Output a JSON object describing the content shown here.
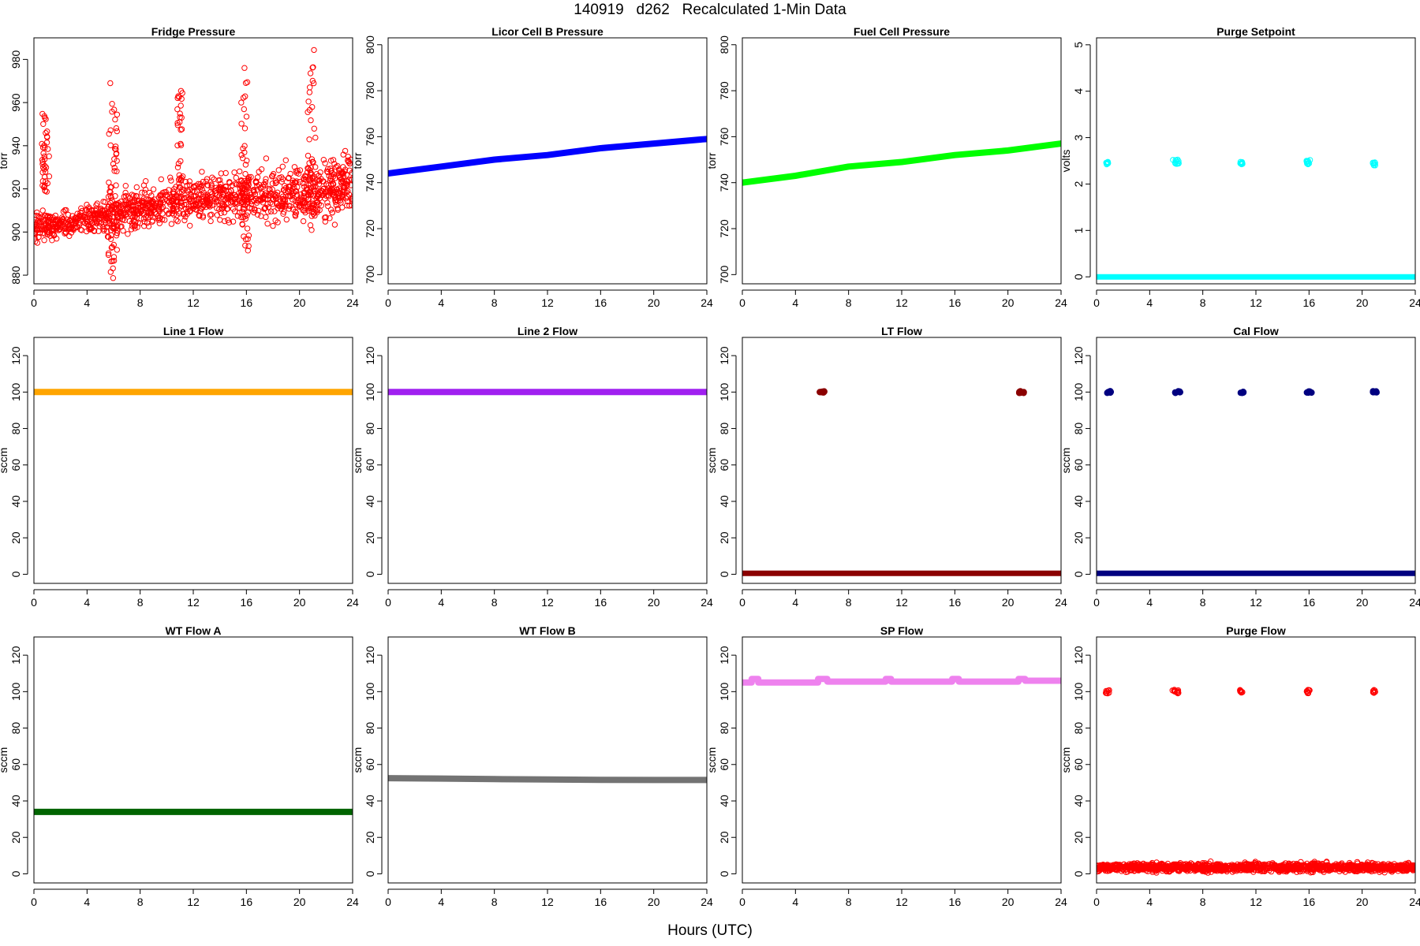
{
  "figure": {
    "title": "140919   d262   Recalculated 1-Min Data",
    "xlabel": "Hours (UTC)"
  },
  "chart_data": [
    {
      "id": "fridge-pressure",
      "type": "scatter",
      "title": "Fridge Pressure",
      "ylabel": "torr",
      "xlim": [
        0,
        24
      ],
      "ylim": [
        876,
        990
      ],
      "xticks": [
        0,
        4,
        8,
        12,
        16,
        20,
        24
      ],
      "yticks": [
        880,
        900,
        920,
        940,
        960,
        980
      ],
      "color": "#ff0000",
      "marker": "open",
      "series": [
        {
          "name": "baseline",
          "kind": "noisy",
          "x": [
            0,
            4,
            8,
            12,
            16,
            20,
            24
          ],
          "y": [
            902,
            905,
            911,
            915,
            917,
            919,
            922
          ],
          "noise": [
            6,
            6,
            9,
            10,
            11,
            13,
            14
          ],
          "n": 1300
        },
        {
          "name": "spike-1",
          "kind": "cluster",
          "x": [
            0.6,
            1.2
          ],
          "y": [
            918,
            956
          ],
          "n": 40
        },
        {
          "name": "spike-2",
          "kind": "cluster",
          "x": [
            5.6,
            6.3
          ],
          "y": [
            878,
            970
          ],
          "n": 55
        },
        {
          "name": "spike-3",
          "kind": "cluster",
          "x": [
            10.8,
            11.2
          ],
          "y": [
            915,
            966
          ],
          "n": 30
        },
        {
          "name": "spike-4",
          "kind": "cluster",
          "x": [
            15.6,
            16.2
          ],
          "y": [
            890,
            978
          ],
          "n": 45
        },
        {
          "name": "spike-5",
          "kind": "cluster",
          "x": [
            20.6,
            21.2
          ],
          "y": [
            900,
            988
          ],
          "n": 40
        }
      ]
    },
    {
      "id": "licor-cell-b-pressure",
      "type": "line",
      "title": "Licor Cell B Pressure",
      "ylabel": "torr",
      "xlim": [
        0,
        24
      ],
      "ylim": [
        696,
        803
      ],
      "xticks": [
        0,
        4,
        8,
        12,
        16,
        20,
        24
      ],
      "yticks": [
        700,
        720,
        740,
        760,
        780,
        800
      ],
      "color": "#0000ff",
      "marker": "thick",
      "series": [
        {
          "name": "pressure",
          "x": [
            0,
            4,
            8,
            12,
            16,
            20,
            24
          ],
          "y": [
            744,
            747,
            750,
            752,
            755,
            757,
            759
          ]
        }
      ]
    },
    {
      "id": "fuel-cell-pressure",
      "type": "line",
      "title": "Fuel Cell Pressure",
      "ylabel": "torr",
      "xlim": [
        0,
        24
      ],
      "ylim": [
        696,
        803
      ],
      "xticks": [
        0,
        4,
        8,
        12,
        16,
        20,
        24
      ],
      "yticks": [
        700,
        720,
        740,
        760,
        780,
        800
      ],
      "color": "#00ff00",
      "marker": "thick",
      "series": [
        {
          "name": "pressure",
          "x": [
            0,
            4,
            8,
            12,
            16,
            20,
            24
          ],
          "y": [
            740,
            743,
            747,
            749,
            752,
            754,
            757
          ]
        }
      ]
    },
    {
      "id": "purge-setpoint",
      "type": "scatter",
      "title": "Purge Setpoint",
      "ylabel": "volts",
      "xlim": [
        0,
        24
      ],
      "ylim": [
        -0.15,
        5.15
      ],
      "xticks": [
        0,
        4,
        8,
        12,
        16,
        20,
        24
      ],
      "yticks": [
        0,
        1,
        2,
        3,
        4,
        5
      ],
      "color": "#00ffff",
      "marker": "open",
      "series": [
        {
          "name": "off",
          "kind": "line",
          "x": [
            0,
            24
          ],
          "y": [
            0,
            0
          ]
        },
        {
          "name": "on-1",
          "kind": "cluster",
          "x": [
            0.6,
            0.9
          ],
          "y": [
            2.42,
            2.48
          ],
          "n": 10
        },
        {
          "name": "on-2",
          "kind": "cluster",
          "x": [
            5.7,
            6.2
          ],
          "y": [
            2.43,
            2.53
          ],
          "n": 12
        },
        {
          "name": "on-3",
          "kind": "cluster",
          "x": [
            10.8,
            11.0
          ],
          "y": [
            2.42,
            2.48
          ],
          "n": 10
        },
        {
          "name": "on-4",
          "kind": "cluster",
          "x": [
            15.8,
            16.1
          ],
          "y": [
            2.42,
            2.52
          ],
          "n": 12
        },
        {
          "name": "on-5",
          "kind": "cluster",
          "x": [
            20.8,
            21.0
          ],
          "y": [
            2.4,
            2.48
          ],
          "n": 10
        }
      ]
    },
    {
      "id": "line-1-flow",
      "type": "line",
      "title": "Line 1 Flow",
      "ylabel": "sccm",
      "xlim": [
        0,
        24
      ],
      "ylim": [
        -5,
        130
      ],
      "xticks": [
        0,
        4,
        8,
        12,
        16,
        20,
        24
      ],
      "yticks": [
        0,
        20,
        40,
        60,
        80,
        100,
        120
      ],
      "color": "#ffa500",
      "marker": "thick",
      "series": [
        {
          "name": "flow",
          "x": [
            0,
            24
          ],
          "y": [
            100,
            100
          ]
        }
      ]
    },
    {
      "id": "line-2-flow",
      "type": "line",
      "title": "Line 2 Flow",
      "ylabel": "sccm",
      "xlim": [
        0,
        24
      ],
      "ylim": [
        -5,
        130
      ],
      "xticks": [
        0,
        4,
        8,
        12,
        16,
        20,
        24
      ],
      "yticks": [
        0,
        20,
        40,
        60,
        80,
        100,
        120
      ],
      "color": "#a020f0",
      "marker": "thick",
      "series": [
        {
          "name": "flow",
          "x": [
            0,
            24
          ],
          "y": [
            100,
            100
          ]
        }
      ]
    },
    {
      "id": "lt-flow",
      "type": "scatter",
      "title": "LT Flow",
      "ylabel": "sccm",
      "xlim": [
        0,
        24
      ],
      "ylim": [
        -5,
        130
      ],
      "xticks": [
        0,
        4,
        8,
        12,
        16,
        20,
        24
      ],
      "yticks": [
        0,
        20,
        40,
        60,
        80,
        100,
        120
      ],
      "color": "#8b0000",
      "marker": "filled",
      "series": [
        {
          "name": "off",
          "kind": "line",
          "x": [
            0,
            24
          ],
          "y": [
            0.5,
            0.5
          ]
        },
        {
          "name": "on-1",
          "kind": "cluster",
          "x": [
            5.8,
            6.2
          ],
          "y": [
            99.5,
            100.5
          ],
          "n": 8
        },
        {
          "name": "on-2",
          "kind": "cluster",
          "x": [
            20.8,
            21.2
          ],
          "y": [
            99.5,
            100.5
          ],
          "n": 8
        }
      ]
    },
    {
      "id": "cal-flow",
      "type": "scatter",
      "title": "Cal Flow",
      "ylabel": "sccm",
      "xlim": [
        0,
        24
      ],
      "ylim": [
        -5,
        130
      ],
      "xticks": [
        0,
        4,
        8,
        12,
        16,
        20,
        24
      ],
      "yticks": [
        0,
        20,
        40,
        60,
        80,
        100,
        120
      ],
      "color": "#000080",
      "marker": "filled",
      "series": [
        {
          "name": "off",
          "kind": "line",
          "x": [
            0,
            24
          ],
          "y": [
            0.5,
            0.5
          ]
        },
        {
          "name": "on-1",
          "kind": "cluster",
          "x": [
            0.7,
            1.1
          ],
          "y": [
            99.5,
            100.5
          ],
          "n": 6
        },
        {
          "name": "on-2",
          "kind": "cluster",
          "x": [
            5.8,
            6.3
          ],
          "y": [
            99.5,
            100.5
          ],
          "n": 6
        },
        {
          "name": "on-3",
          "kind": "cluster",
          "x": [
            10.8,
            11.1
          ],
          "y": [
            99.5,
            100.5
          ],
          "n": 6
        },
        {
          "name": "on-4",
          "kind": "cluster",
          "x": [
            15.8,
            16.2
          ],
          "y": [
            99.5,
            100.5
          ],
          "n": 6
        },
        {
          "name": "on-5",
          "kind": "cluster",
          "x": [
            20.8,
            21.1
          ],
          "y": [
            99.5,
            100.5
          ],
          "n": 6
        }
      ]
    },
    {
      "id": "wt-flow-a",
      "type": "line",
      "title": "WT Flow A",
      "ylabel": "sccm",
      "xlim": [
        0,
        24
      ],
      "ylim": [
        -5,
        130
      ],
      "xticks": [
        0,
        4,
        8,
        12,
        16,
        20,
        24
      ],
      "yticks": [
        0,
        20,
        40,
        60,
        80,
        100,
        120
      ],
      "color": "#006400",
      "marker": "thick",
      "series": [
        {
          "name": "flow",
          "x": [
            0,
            24
          ],
          "y": [
            34,
            34
          ]
        }
      ]
    },
    {
      "id": "wt-flow-b",
      "type": "line",
      "title": "WT Flow B",
      "ylabel": "sccm",
      "xlim": [
        0,
        24
      ],
      "ylim": [
        -5,
        130
      ],
      "xticks": [
        0,
        4,
        8,
        12,
        16,
        20,
        24
      ],
      "yticks": [
        0,
        20,
        40,
        60,
        80,
        100,
        120
      ],
      "color": "#737373",
      "marker": "thick",
      "series": [
        {
          "name": "flow",
          "x": [
            0,
            4,
            8,
            12,
            16,
            20,
            24
          ],
          "y": [
            52.5,
            52.3,
            52,
            51.8,
            51.6,
            51.5,
            51.5
          ]
        }
      ]
    },
    {
      "id": "sp-flow",
      "type": "line",
      "title": "SP Flow",
      "ylabel": "sccm",
      "xlim": [
        0,
        24
      ],
      "ylim": [
        -5,
        130
      ],
      "xticks": [
        0,
        4,
        8,
        12,
        16,
        20,
        24
      ],
      "yticks": [
        0,
        20,
        40,
        60,
        80,
        100,
        120
      ],
      "color": "#ee82ee",
      "marker": "thick",
      "series": [
        {
          "name": "flow",
          "x": [
            0,
            0.7,
            0.7,
            1.2,
            1.2,
            5.7,
            5.7,
            6.4,
            6.4,
            10.8,
            10.8,
            11.2,
            11.2,
            15.8,
            15.8,
            16.3,
            16.3,
            20.8,
            20.8,
            21.3,
            21.3,
            24
          ],
          "y": [
            105,
            105,
            107,
            107,
            105,
            105,
            107,
            107,
            105.5,
            105.5,
            107,
            107,
            105.5,
            105.5,
            107,
            107,
            105.5,
            105.5,
            107,
            107,
            106,
            106
          ]
        }
      ]
    },
    {
      "id": "purge-flow",
      "type": "scatter",
      "title": "Purge Flow",
      "ylabel": "sccm",
      "xlim": [
        0,
        24
      ],
      "ylim": [
        -5,
        130
      ],
      "xticks": [
        0,
        4,
        8,
        12,
        16,
        20,
        24
      ],
      "yticks": [
        0,
        20,
        40,
        60,
        80,
        100,
        120
      ],
      "color": "#ff0000",
      "marker": "open",
      "series": [
        {
          "name": "baseline",
          "kind": "noisy",
          "x": [
            0,
            24
          ],
          "y": [
            3.5,
            3.5
          ],
          "noise": [
            2.2,
            2.2
          ],
          "n": 1400
        },
        {
          "name": "on-1",
          "kind": "cluster",
          "x": [
            0.7,
            1.0
          ],
          "y": [
            99,
            101
          ],
          "n": 10
        },
        {
          "name": "on-2",
          "kind": "cluster",
          "x": [
            5.7,
            6.2
          ],
          "y": [
            99,
            101
          ],
          "n": 12
        },
        {
          "name": "on-3",
          "kind": "cluster",
          "x": [
            10.8,
            11.0
          ],
          "y": [
            99,
            101
          ],
          "n": 10
        },
        {
          "name": "on-4",
          "kind": "cluster",
          "x": [
            15.8,
            16.1
          ],
          "y": [
            99,
            101
          ],
          "n": 10
        },
        {
          "name": "on-5",
          "kind": "cluster",
          "x": [
            20.8,
            21.0
          ],
          "y": [
            99,
            101
          ],
          "n": 10
        }
      ]
    }
  ]
}
